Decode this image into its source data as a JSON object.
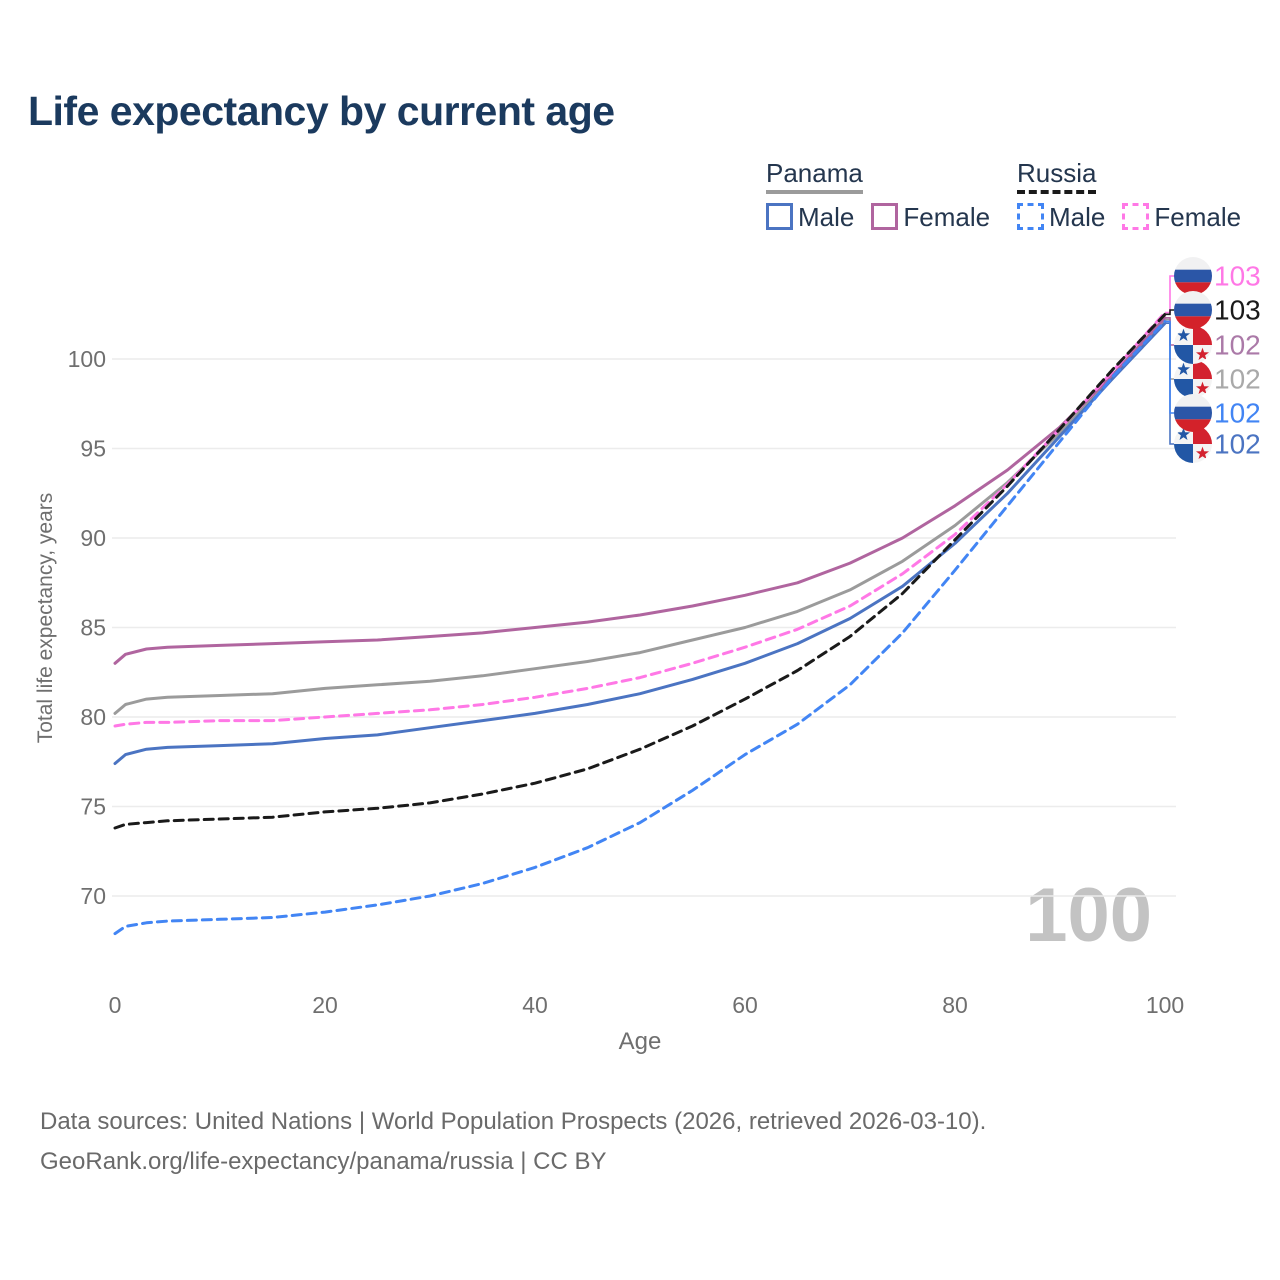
{
  "title": "Life expectancy by current age",
  "colors": {
    "title": "#1b3a5e",
    "legend_text": "#24364e",
    "axis_text": "#6f6f6f",
    "grid": "#ececec",
    "watermark": "#c3c3c3",
    "panama_male": "#4b74c2",
    "panama_female": "#b0659f",
    "panama_total": "#9b9b9b",
    "russia_male": "#4285f4",
    "russia_female": "#ff78e6",
    "russia_total": "#1a1a1a"
  },
  "legend": {
    "groups": [
      {
        "country": "Panama",
        "line_style": "solid",
        "underline_color": "#9b9b9b",
        "items": [
          {
            "label": "Male",
            "color": "#4b74c2",
            "dashed": false
          },
          {
            "label": "Female",
            "color": "#b0659f",
            "dashed": false
          }
        ]
      },
      {
        "country": "Russia",
        "line_style": "dashed",
        "underline_color": "#1a1a1a",
        "items": [
          {
            "label": "Male",
            "color": "#4285f4",
            "dashed": true
          },
          {
            "label": "Female",
            "color": "#ff78e6",
            "dashed": true
          }
        ]
      }
    ]
  },
  "chart_data": {
    "type": "line",
    "title": "Life expectancy by current age",
    "xlabel": "Age",
    "ylabel": "Total life expectancy, years",
    "xlim": [
      0,
      100
    ],
    "ylim": [
      66.5,
      104
    ],
    "x_ticks": [
      0,
      20,
      40,
      60,
      80,
      100
    ],
    "y_ticks": [
      70,
      75,
      80,
      85,
      90,
      95,
      100
    ],
    "grid": "horizontal-only",
    "legend_position": "top-right",
    "age_marker": "100",
    "ages": [
      0,
      1,
      3,
      5,
      10,
      15,
      20,
      25,
      30,
      35,
      40,
      45,
      50,
      55,
      60,
      65,
      70,
      75,
      80,
      85,
      90,
      95,
      100
    ],
    "series": [
      {
        "name": "Panama Total",
        "country": "Panama",
        "sex": "Total",
        "color": "#9b9b9b",
        "dashed": false,
        "flag": "panama",
        "label_row": 3,
        "end_label": "102",
        "end_label_color": "#a9a9a9",
        "values": [
          80.2,
          80.7,
          81.0,
          81.1,
          81.2,
          81.3,
          81.6,
          81.8,
          82.0,
          82.3,
          82.7,
          83.1,
          83.6,
          84.3,
          85.0,
          85.9,
          87.1,
          88.7,
          90.7,
          93.1,
          95.9,
          99.0,
          102.2
        ]
      },
      {
        "name": "Panama Female",
        "country": "Panama",
        "sex": "Female",
        "color": "#b0659f",
        "dashed": false,
        "flag": "panama",
        "label_row": 2,
        "end_label": "102",
        "end_label_color": "#ab7aa8",
        "values": [
          83.0,
          83.5,
          83.8,
          83.9,
          84.0,
          84.1,
          84.2,
          84.3,
          84.5,
          84.7,
          85.0,
          85.3,
          85.7,
          86.2,
          86.8,
          87.5,
          88.6,
          90.0,
          91.8,
          93.8,
          96.2,
          99.1,
          102.3
        ]
      },
      {
        "name": "Panama Male",
        "country": "Panama",
        "sex": "Male",
        "color": "#4b74c2",
        "dashed": false,
        "flag": "panama",
        "label_row": 5,
        "end_label": "102",
        "end_label_color": "#4b74c2",
        "values": [
          77.4,
          77.9,
          78.2,
          78.3,
          78.4,
          78.5,
          78.8,
          79.0,
          79.4,
          79.8,
          80.2,
          80.7,
          81.3,
          82.1,
          83.0,
          84.1,
          85.5,
          87.3,
          89.7,
          92.5,
          95.7,
          98.9,
          102.0
        ]
      },
      {
        "name": "Russia Male",
        "country": "Russia",
        "sex": "Male",
        "color": "#4285f4",
        "dashed": true,
        "flag": "russia",
        "label_row": 4,
        "end_label": "102",
        "end_label_color": "#4285f4",
        "values": [
          67.9,
          68.3,
          68.5,
          68.6,
          68.7,
          68.8,
          69.1,
          69.5,
          70.0,
          70.7,
          71.6,
          72.7,
          74.1,
          75.9,
          77.9,
          79.6,
          81.8,
          84.7,
          88.2,
          91.8,
          95.4,
          99.0,
          102.1
        ]
      },
      {
        "name": "Russia Female",
        "country": "Russia",
        "sex": "Female",
        "color": "#ff78e6",
        "dashed": true,
        "flag": "russia",
        "label_row": 0,
        "end_label": "103",
        "end_label_color": "#ff78e6",
        "values": [
          79.5,
          79.6,
          79.7,
          79.7,
          79.8,
          79.8,
          80.0,
          80.2,
          80.4,
          80.7,
          81.1,
          81.6,
          82.2,
          83.0,
          83.9,
          84.9,
          86.2,
          88.0,
          90.2,
          93.0,
          96.1,
          99.3,
          102.6
        ]
      },
      {
        "name": "Russia Total",
        "country": "Russia",
        "sex": "Total",
        "color": "#1a1a1a",
        "dashed": true,
        "flag": "russia",
        "label_row": 1,
        "end_label": "103",
        "end_label_color": "#1a1a1a",
        "values": [
          73.8,
          74.0,
          74.1,
          74.2,
          74.3,
          74.4,
          74.7,
          74.9,
          75.2,
          75.7,
          76.3,
          77.1,
          78.2,
          79.5,
          81.0,
          82.6,
          84.5,
          86.9,
          89.9,
          92.9,
          96.1,
          99.4,
          102.5
        ]
      }
    ]
  },
  "footer": {
    "line1": "Data sources: United Nations | World Population Prospects (2026, retrieved 2026-03-10).",
    "line2": "GeoRank.org/life-expectancy/panama/russia | CC BY"
  }
}
